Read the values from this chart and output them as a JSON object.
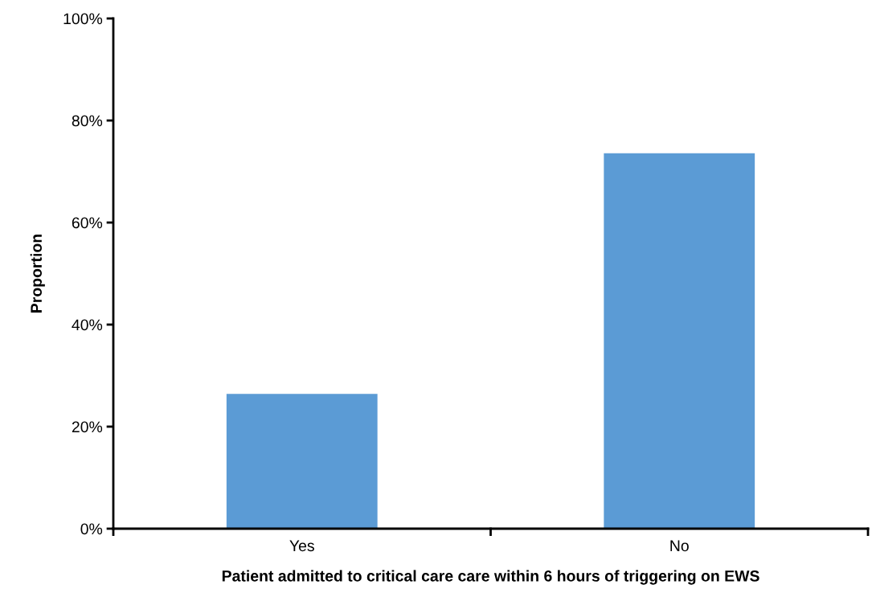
{
  "chart_data": {
    "type": "bar",
    "xlabel": "Patient admitted to critical care care within 6 hours of triggering on EWS",
    "ylabel": "Proportion",
    "categories": [
      "Yes",
      "No"
    ],
    "values": [
      26.4,
      73.6
    ],
    "color": "#5b9bd5",
    "ylim": [
      0,
      100
    ],
    "yticks": [
      {
        "value": 0,
        "label": "0%"
      },
      {
        "value": 20,
        "label": "20%"
      },
      {
        "value": 40,
        "label": "40%"
      },
      {
        "value": 60,
        "label": "60%"
      },
      {
        "value": 80,
        "label": "80%"
      },
      {
        "value": 100,
        "label": "100%"
      }
    ],
    "grid": false,
    "legend": false
  }
}
